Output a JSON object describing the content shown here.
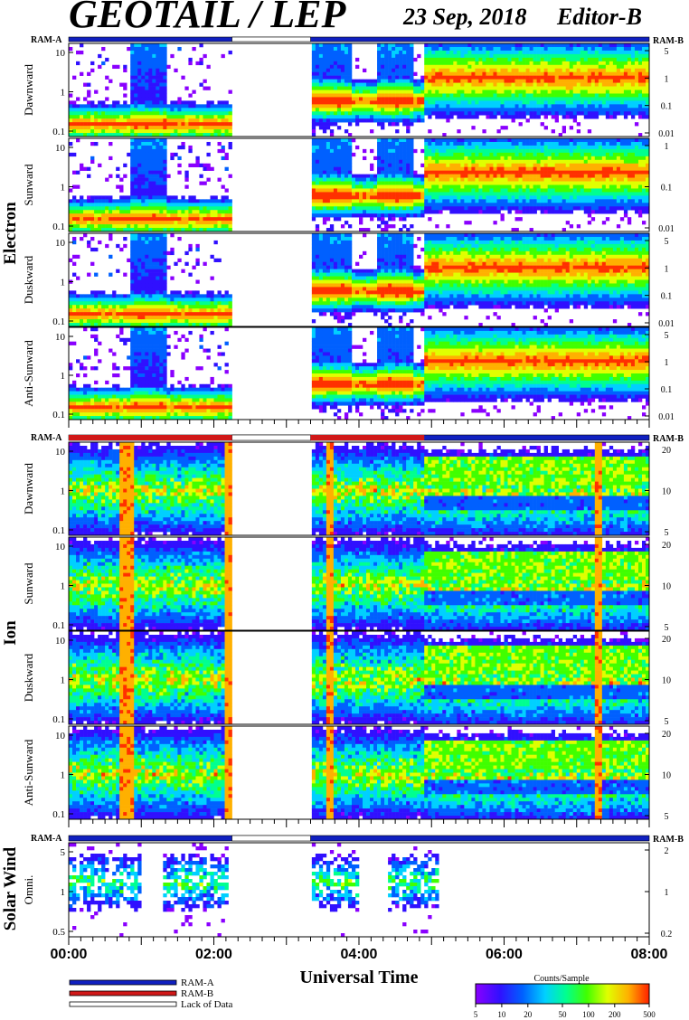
{
  "header": {
    "title": "GEOTAIL / LEP",
    "date": "23 Sep, 2018",
    "editor": "Editor-B"
  },
  "chart_data": {
    "type": "heatmap",
    "xlabel": "Universal Time",
    "x_ticks": [
      "00:00",
      "02:00",
      "04:00",
      "06:00",
      "08:00"
    ],
    "x_range": [
      "00:00",
      "08:00"
    ],
    "ram_labels": {
      "left": "RAM-A",
      "right": "RAM-B"
    },
    "data_gap": {
      "start": "02:15",
      "end": "03:20"
    },
    "groups": [
      {
        "name": "Electron",
        "ram_mode": "RAM-A",
        "panels": [
          {
            "label": "Dawnward",
            "left_ticks": [
              "10",
              "1",
              "0.1"
            ],
            "right_ticks": [
              "5",
              "1",
              "0.1",
              "0.01"
            ]
          },
          {
            "label": "Sunward",
            "left_ticks": [
              "10",
              "1",
              "0.1"
            ],
            "right_ticks": [
              "1",
              "0.1",
              "0.01"
            ]
          },
          {
            "label": "Duskward",
            "left_ticks": [
              "10",
              "1",
              "0.1"
            ],
            "right_ticks": [
              "5",
              "1",
              "0.1",
              "0.01"
            ]
          },
          {
            "label": "Anti-Sunward",
            "left_ticks": [
              "10",
              "1",
              "0.1"
            ],
            "right_ticks": [
              "5",
              "1",
              "0.1",
              "0.01"
            ]
          }
        ]
      },
      {
        "name": "Ion",
        "ram_mode": "RAM-B then RAM-A",
        "panels": [
          {
            "label": "Dawnward",
            "left_ticks": [
              "10",
              "1",
              "0.1"
            ],
            "right_ticks": [
              "20",
              "10",
              "5"
            ]
          },
          {
            "label": "Sunward",
            "left_ticks": [
              "10",
              "1",
              "0.1"
            ],
            "right_ticks": [
              "20",
              "10",
              "5"
            ]
          },
          {
            "label": "Duskward",
            "left_ticks": [
              "10",
              "1",
              "0.1"
            ],
            "right_ticks": [
              "20",
              "10",
              "5"
            ]
          },
          {
            "label": "Anti-Sunward",
            "left_ticks": [
              "10",
              "1",
              "0.1"
            ],
            "right_ticks": [
              "20",
              "10",
              "5"
            ]
          }
        ]
      },
      {
        "name": "Solar Wind",
        "ram_mode": "RAM-A",
        "panels": [
          {
            "label": "Omni.",
            "left_ticks": [
              "5",
              "1",
              "0.5"
            ],
            "right_ticks": [
              "2",
              "1",
              "0.2"
            ]
          }
        ]
      }
    ],
    "legend": [
      {
        "label": "RAM-A",
        "color": "#1020c0"
      },
      {
        "label": "RAM-B",
        "color": "#d01818"
      },
      {
        "label": "Lack of Data",
        "color": "#ffffff"
      }
    ],
    "colorbar": {
      "title": "Counts/Sample",
      "ticks": [
        "5",
        "10",
        "20",
        "50",
        "100",
        "200",
        "500"
      ],
      "scale": "log",
      "range": [
        5,
        500
      ]
    }
  },
  "colors": {
    "ram_a": "#1020c0",
    "ram_b": "#d01818",
    "colormap": [
      "#8a00ff",
      "#3010ff",
      "#0060ff",
      "#00d0ff",
      "#00ff90",
      "#40ff00",
      "#e0ff00",
      "#ffb000",
      "#ff3000"
    ]
  }
}
